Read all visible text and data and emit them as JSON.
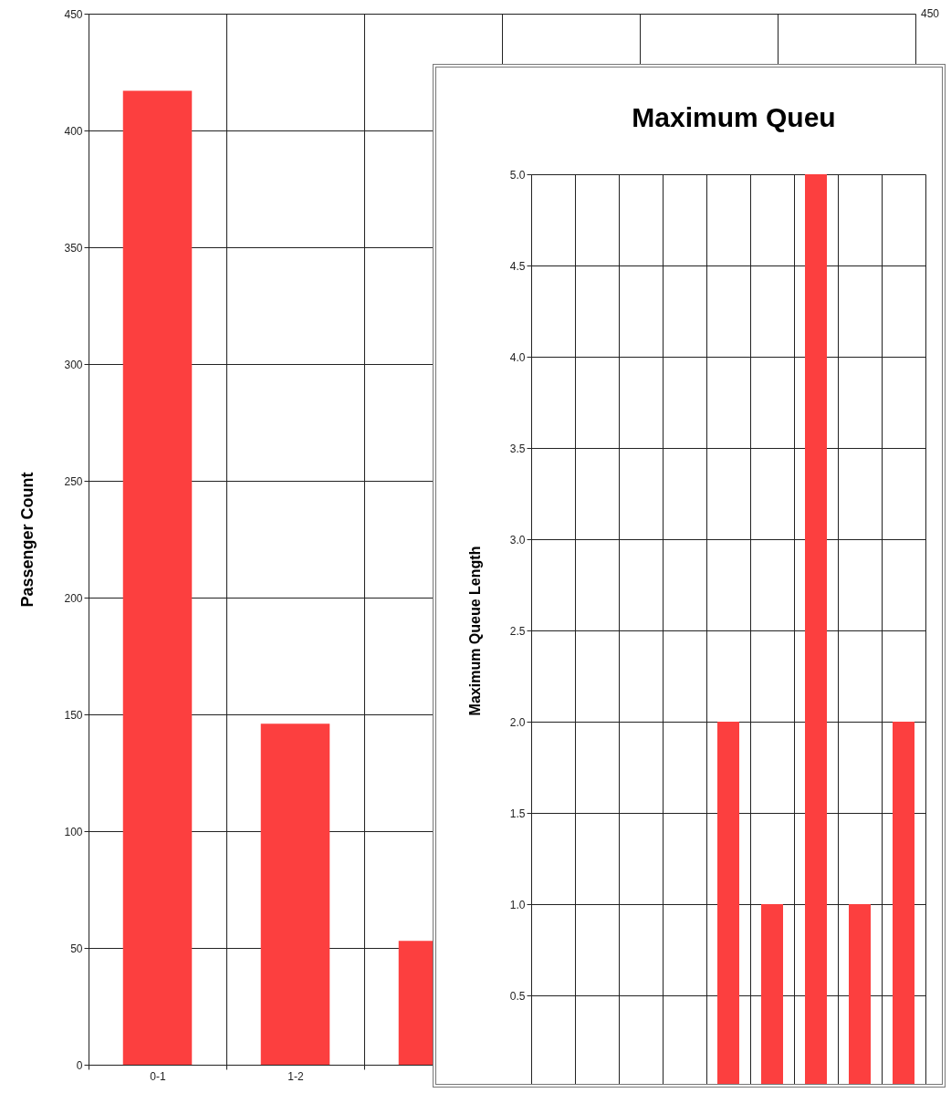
{
  "chart_data": [
    {
      "type": "bar",
      "ylabel": "Passenger Count",
      "categories": [
        "0-1",
        "1-2",
        null,
        null,
        null,
        null
      ],
      "values": [
        417,
        146,
        53,
        null,
        null,
        null
      ],
      "color": "#fc3f3f",
      "ylim": [
        0,
        450
      ],
      "yticks": [
        0,
        50,
        100,
        150,
        200,
        250,
        300,
        350,
        400,
        450
      ],
      "annotations": [
        "450"
      ],
      "grid": true
    },
    {
      "type": "bar",
      "title": "Maximum Queu",
      "ylabel": "Maximum Queue Length",
      "categories": [
        null,
        null,
        null,
        null,
        null,
        null,
        null,
        null,
        null
      ],
      "values": [
        0,
        0,
        0,
        0,
        2,
        1,
        5,
        1,
        2
      ],
      "color": "#fc3f3f",
      "ylim": [
        0,
        5
      ],
      "yticks": [
        {
          "value": 0.5,
          "label": "0.5"
        },
        {
          "value": 1,
          "label": "1.0"
        },
        {
          "value": 1.5,
          "label": "1.5"
        },
        {
          "value": 2,
          "label": "2.0"
        },
        {
          "value": 2.5,
          "label": "2.5"
        },
        {
          "value": 3,
          "label": "3.0"
        },
        {
          "value": 3.5,
          "label": "3.5"
        },
        {
          "value": 4,
          "label": "4.0"
        },
        {
          "value": 4.5,
          "label": "4.5"
        },
        {
          "value": 5,
          "label": "5.0"
        }
      ],
      "grid": true
    }
  ]
}
